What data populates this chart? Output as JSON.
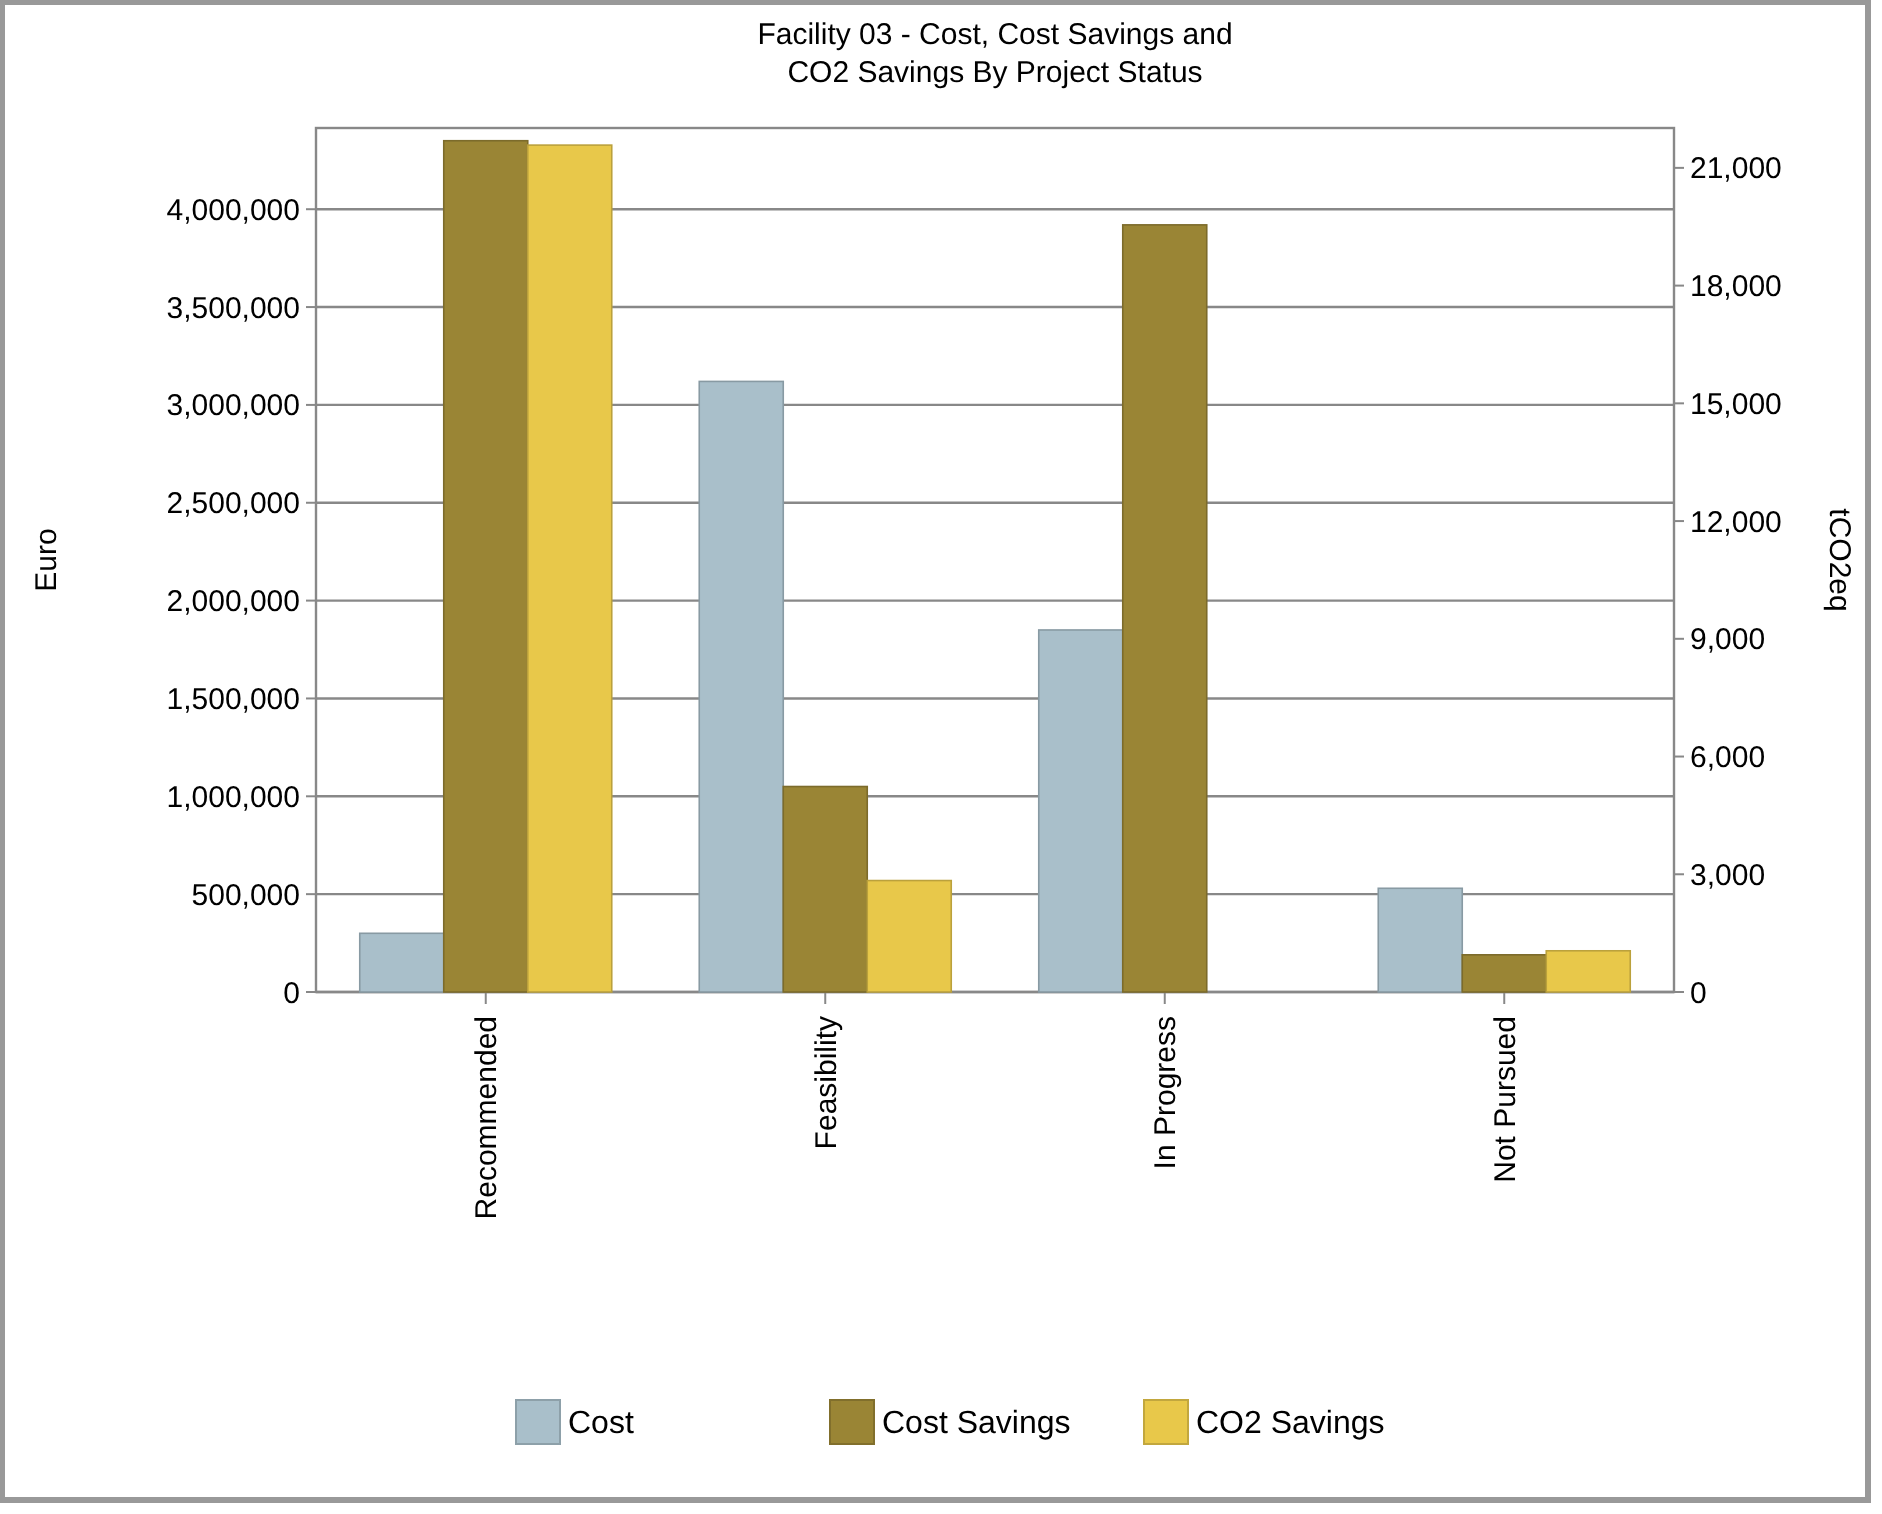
{
  "chart_data": {
    "type": "bar",
    "title": "Facility 03 - Cost, Cost Savings and CO2 Savings By Project Status",
    "ylabel": "Euro",
    "y2label": "tCO2eq",
    "categories": [
      "Recommended",
      "Feasibility",
      "In Progress",
      "Not Pursued"
    ],
    "series": [
      {
        "name": "Cost",
        "color": "#a9bfca",
        "values": [
          300000,
          3120000,
          1850000,
          530000
        ]
      },
      {
        "name": "Cost Savings",
        "color": "#9a8535",
        "values": [
          4350000,
          1050000,
          3920000,
          190000
        ]
      },
      {
        "name": "CO2 Savings",
        "color": "#e8c84a",
        "axis": "y2",
        "values": [
          21580,
          2840,
          0,
          1050
        ]
      }
    ],
    "ylim": [
      0,
      4415000
    ],
    "yticks": [
      0,
      {
        "value": 500000,
        "label": "500,000"
      },
      {
        "value": 1000000,
        "label": "1,000,000"
      },
      {
        "value": 1500000,
        "label": "1,500,000"
      },
      {
        "value": 2000000,
        "label": "2,000,000"
      },
      {
        "value": 2500000,
        "label": "2,500,000"
      },
      {
        "value": 3000000,
        "label": "3,000,000"
      },
      {
        "value": 3500000,
        "label": "3,500,000"
      },
      {
        "value": 4000000,
        "label": "4,000,000"
      }
    ],
    "y2lim": [
      0,
      22016
    ],
    "y2ticks": [
      0,
      {
        "value": 3000,
        "label": "3,000"
      },
      {
        "value": 6000,
        "label": "6,000"
      },
      {
        "value": 9000,
        "label": "9,000"
      },
      {
        "value": 12000,
        "label": "12,000"
      },
      {
        "value": 15000,
        "label": "15,000"
      },
      {
        "value": 18000,
        "label": "18,000"
      },
      {
        "value": 21000,
        "label": "21,000"
      }
    ],
    "grid": "y",
    "legend": "bottom"
  }
}
